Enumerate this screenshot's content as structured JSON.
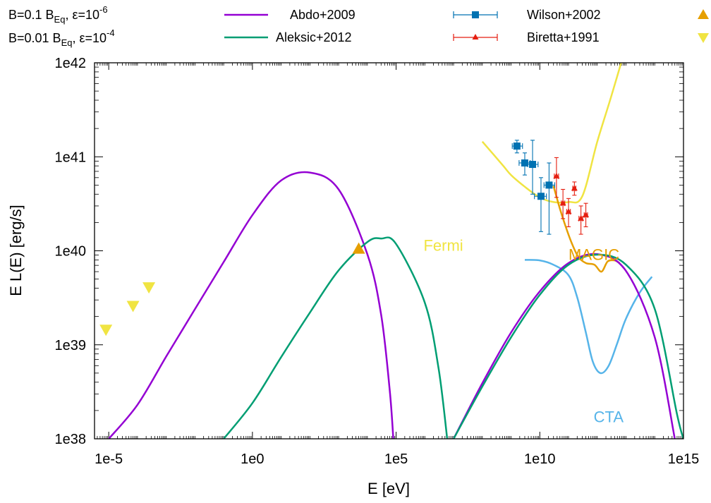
{
  "chart_data": {
    "type": "line",
    "xlabel": "E [eV]",
    "ylabel": "E L(E) [erg/s]",
    "xscale": "log",
    "yscale": "log",
    "xlim": [
      3.2e-06,
      1000000000000000.0
    ],
    "ylim": [
      1e+38,
      1e+42
    ],
    "xticks": [
      {
        "value": 1e-05,
        "label": "1e-5"
      },
      {
        "value": 1,
        "label": "1e0"
      },
      {
        "value": 100000.0,
        "label": "1e5"
      },
      {
        "value": 10000000000.0,
        "label": "1e10"
      },
      {
        "value": 1000000000000000.0,
        "label": "1e15"
      }
    ],
    "yticks": [
      {
        "value": 1e+38,
        "label": "1e38"
      },
      {
        "value": 1e+39,
        "label": "1e39"
      },
      {
        "value": 1e+40,
        "label": "1e40"
      },
      {
        "value": 1e+41,
        "label": "1e41"
      },
      {
        "value": 1e+42,
        "label": "1e42"
      }
    ],
    "legend": {
      "placement": "top, above plot",
      "model1": {
        "prefix": "B=0.1 B",
        "sub": "Eq",
        "mid": ", ε=10",
        "sup": "-6",
        "color": "#9400d3"
      },
      "model2": {
        "prefix": "B=0.01 B",
        "sub": "Eq",
        "mid": ", ε=10",
        "sup": "-4",
        "color": "#009e73"
      },
      "data_entries": [
        {
          "name": "Abdo+2009",
          "color": "#9400d3",
          "style": "line"
        },
        {
          "name": "Aleksic+2012",
          "color": "#009e73",
          "style": "line"
        },
        {
          "name": "Wilson+2002",
          "color": "#0072b2",
          "style": "square-errorbar"
        },
        {
          "name": "Biretta+1991",
          "color": "#e51e10",
          "style": "triangle-errorbar"
        },
        {
          "name": "",
          "color": "#e69f00",
          "style": "triangle-up"
        },
        {
          "name": "",
          "color": "#f0e442",
          "style": "triangle-down"
        }
      ]
    },
    "series": [
      {
        "id": "model-1",
        "color": "#9400d3",
        "points": [
          [
            1e-05,
            1e+38
          ],
          [
            0.0001,
            2.3e+38
          ],
          [
            0.001,
            7.5e+38
          ],
          [
            0.01,
            2.4e+39
          ],
          [
            0.1,
            7.6e+39
          ],
          [
            1,
            2.4e+40
          ],
          [
            10,
            5.6e+40
          ],
          [
            100,
            6.8e+40
          ],
          [
            1000,
            4.5e+40
          ],
          [
            10000.0,
            9.2e+39
          ],
          [
            30000.0,
            2.1e+39
          ],
          [
            60000.0,
            3.3e+38
          ],
          [
            80000.0,
            1e+38
          ]
        ]
      },
      {
        "id": "model-1-ic",
        "color": "#9400d3",
        "points": [
          [
            10000000.0,
            1e+38
          ],
          [
            100000000.0,
            3.9e+38
          ],
          [
            1000000000.0,
            1.35e+39
          ],
          [
            10000000000.0,
            3.7e+39
          ],
          [
            100000000000.0,
            7.4e+39
          ],
          [
            1000000000000.0,
            9.2e+39
          ],
          [
            10000000000000.0,
            6.1e+39
          ],
          [
            100000000000000.0,
            1.2e+39
          ],
          [
            500000000000000.0,
            1e+38
          ]
        ]
      },
      {
        "id": "model-2",
        "color": "#009e73",
        "points": [
          [
            0.1,
            1e+38
          ],
          [
            1,
            2.4e+38
          ],
          [
            10,
            7.4e+38
          ],
          [
            100,
            2.2e+39
          ],
          [
            1000,
            6.2e+39
          ],
          [
            10000.0,
            1.24e+40
          ],
          [
            30000.0,
            1.35e+40
          ],
          [
            100000.0,
            1.18e+40
          ],
          [
            1000000.0,
            2.8e+39
          ],
          [
            3000000.0,
            5.6e+38
          ],
          [
            6000000.0,
            1e+38
          ]
        ]
      },
      {
        "id": "model-2-ic",
        "color": "#009e73",
        "points": [
          [
            10000000.0,
            1e+38
          ],
          [
            100000000.0,
            3.6e+38
          ],
          [
            1000000000.0,
            1.2e+39
          ],
          [
            10000000000.0,
            3.4e+39
          ],
          [
            100000000000.0,
            7.1e+39
          ],
          [
            1000000000000.0,
            9.1e+39
          ],
          [
            10000000000000.0,
            7.1e+39
          ],
          [
            100000000000000.0,
            2.4e+39
          ],
          [
            600000000000000.0,
            1.8e+38
          ],
          [
            1000000000000000.0,
            1e+38
          ]
        ]
      }
    ],
    "sensitivity_curves": [
      {
        "label": "Fermi",
        "color": "#f0e442",
        "label_at": [
          900000.0,
          1e+40
        ],
        "points": [
          [
            100000000.0,
            1.45e+41
          ],
          [
            500000000.0,
            8.2e+40
          ],
          [
            1000000000.0,
            6.4e+40
          ],
          [
            3000000000.0,
            4.8e+40
          ],
          [
            10000000000.0,
            3.7e+40
          ],
          [
            30000000000.0,
            3.3e+40
          ],
          [
            100000000000.0,
            3.3e+40
          ],
          [
            300000000000.0,
            3.8e+40
          ],
          [
            1000000000000.0,
            1.45e+41
          ],
          [
            3000000000000.0,
            4.3e+41
          ],
          [
            10000000000000.0,
            1.5e+42
          ]
        ]
      },
      {
        "label": "MAGIC",
        "color": "#e69f00",
        "label_at": [
          100000000000.0,
          8e+39
        ],
        "points": [
          [
            30000000000.0,
            4.9e+40
          ],
          [
            50000000000.0,
            2.8e+40
          ],
          [
            80000000000.0,
            1.8e+40
          ],
          [
            130000000000.0,
            1.2e+40
          ],
          [
            220000000000.0,
            8.6e+39
          ],
          [
            400000000000.0,
            7.4e+39
          ],
          [
            800000000000.0,
            7.1e+39
          ],
          [
            1400000000000.0,
            6e+39
          ],
          [
            2300000000000.0,
            7.7e+39
          ],
          [
            4000000000000.0,
            7.9e+39
          ],
          [
            6000000000000.0,
            7.4e+39
          ]
        ]
      },
      {
        "label": "CTA",
        "color": "#56b4e9",
        "label_at": [
          750000000000.0,
          1.5e+38
        ],
        "points": [
          [
            3000000000.0,
            8e+39
          ],
          [
            10000000000.0,
            7.9e+39
          ],
          [
            30000000000.0,
            7.1e+39
          ],
          [
            100000000000.0,
            5.5e+39
          ],
          [
            200000000000.0,
            3.2e+39
          ],
          [
            400000000000.0,
            1.35e+39
          ],
          [
            700000000000.0,
            6.6e+38
          ],
          [
            1300000000000.0,
            5e+38
          ],
          [
            2500000000000.0,
            6e+38
          ],
          [
            5000000000000.0,
            1.05e+39
          ],
          [
            10000000000000.0,
            1.9e+39
          ],
          [
            30000000000000.0,
            3.6e+39
          ],
          [
            80000000000000.0,
            5.3e+39
          ]
        ]
      }
    ],
    "data_points": [
      {
        "id": "wilson",
        "color": "#0072b2",
        "marker": "square",
        "points": [
          {
            "x": 1600000000.0,
            "y": 1.3e+41,
            "xlo": 1100000000.0,
            "xhi": 2500000000.0,
            "ylo": 1.1e+41,
            "yhi": 1.5e+41
          },
          {
            "x": 3000000000.0,
            "y": 8.6e+40,
            "xlo": 1900000000.0,
            "xhi": 4600000000.0,
            "ylo": 6.4e+40,
            "yhi": 1.1e+41
          },
          {
            "x": 5600000000.0,
            "y": 8.3e+40,
            "xlo": 3800000000.0,
            "xhi": 8700000000.0,
            "ylo": 4e+40,
            "yhi": 1.5e+41
          },
          {
            "x": 11000000000.0,
            "y": 3.8e+40,
            "xlo": 6500000000.0,
            "xhi": 17000000000.0,
            "ylo": 1.6e+40,
            "yhi": 6e+40
          },
          {
            "x": 21000000000.0,
            "y": 5e+40,
            "xlo": 14000000000.0,
            "xhi": 33000000000.0,
            "ylo": 1.5e+40,
            "yhi": 8.6e+40
          }
        ]
      },
      {
        "id": "biretta",
        "color": "#e51e10",
        "marker": "triangle",
        "points": [
          {
            "x": 38000000000.0,
            "y": 6.2e+40,
            "xlo": 32000000000.0,
            "xhi": 45000000000.0,
            "ylo": 3.7e+40,
            "yhi": 9.8e+40
          },
          {
            "x": 64000000000.0,
            "y": 3.2e+40,
            "xlo": 56000000000.0,
            "xhi": 74000000000.0,
            "ylo": 2.2e+40,
            "yhi": 4.5e+40
          },
          {
            "x": 100000000000.0,
            "y": 2.6e+40,
            "xlo": 86000000000.0,
            "xhi": 116000000000.0,
            "ylo": 1.8e+40,
            "yhi": 3.6e+40
          },
          {
            "x": 160000000000.0,
            "y": 4.6e+40,
            "xlo": 140000000000.0,
            "xhi": 180000000000.0,
            "ylo": 3.9e+40,
            "yhi": 5.4e+40
          },
          {
            "x": 270000000000.0,
            "y": 2.2e+40,
            "xlo": 230000000000.0,
            "xhi": 310000000000.0,
            "ylo": 1.5e+40,
            "yhi": 3e+40
          },
          {
            "x": 400000000000.0,
            "y": 2.4e+40,
            "xlo": 350000000000.0,
            "xhi": 460000000000.0,
            "ylo": 1.8e+40,
            "yhi": 3.2e+40
          }
        ]
      }
    ],
    "markers": [
      {
        "id": "orange-uplim",
        "color": "#e69f00",
        "shape": "triangle-up",
        "points": [
          [
            5000.0,
            1.05e+40
          ]
        ]
      },
      {
        "id": "yellow-lim",
        "color": "#f0e442",
        "shape": "triangle-down",
        "points": [
          [
            8e-06,
            1.45e+39
          ],
          [
            7e-05,
            2.6e+39
          ],
          [
            0.00025,
            4.1e+39
          ]
        ]
      }
    ]
  }
}
